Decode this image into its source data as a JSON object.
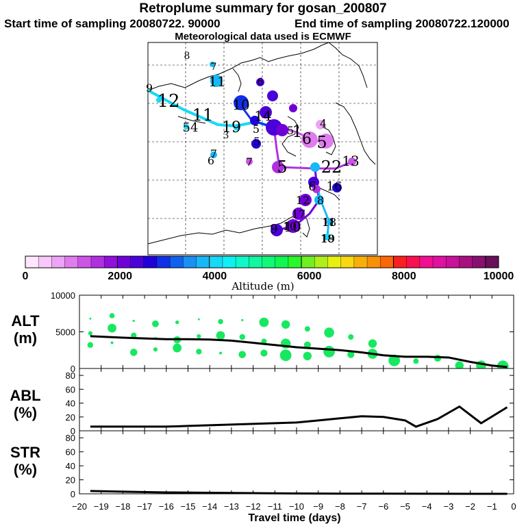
{
  "title": {
    "line1": "Retroplume summary for gosan_200807",
    "start_label": "Start time of sampling 20080722. 90000",
    "end_label": "End time of sampling 20080722.120000",
    "met_label": "Meteorological data used is ECMWF"
  },
  "colorbar": {
    "title": "Altitude (m)",
    "ticks": [
      "0",
      "2000",
      "4000",
      "6000",
      "8000",
      "10000"
    ],
    "colors": [
      "#ffe6ff",
      "#f7c8fa",
      "#eda4f5",
      "#e07cee",
      "#cc55e8",
      "#b030e0",
      "#9010dc",
      "#7000d8",
      "#4a00d8",
      "#2000d8",
      "#1030e8",
      "#1060f0",
      "#1890f4",
      "#18b8f8",
      "#18d8f8",
      "#10f0f0",
      "#10f8c8",
      "#10f8a0",
      "#10f878",
      "#10f850",
      "#28f828",
      "#70f020",
      "#b0f018",
      "#e8f010",
      "#f8d810",
      "#f8b008",
      "#f89008",
      "#f86808",
      "#f82020",
      "#f81050",
      "#f01090",
      "#e010a0",
      "#c81098",
      "#a81080",
      "#881070",
      "#681058"
    ]
  },
  "map": {
    "labels": [
      {
        "t": "8"
      },
      {
        "t": "7"
      },
      {
        "t": "11"
      },
      {
        "t": "6"
      },
      {
        "t": "9"
      },
      {
        "t": "12"
      },
      {
        "t": "10"
      },
      {
        "t": "7"
      },
      {
        "t": "5"
      },
      {
        "t": "14"
      },
      {
        "t": "11"
      },
      {
        "t": "54"
      },
      {
        "t": "19"
      },
      {
        "t": "3"
      },
      {
        "t": "5"
      },
      {
        "t": "6"
      },
      {
        "t": "4"
      },
      {
        "t": "5"
      },
      {
        "t": "1"
      },
      {
        "t": "6"
      },
      {
        "t": "5"
      },
      {
        "t": "7"
      },
      {
        "t": "6"
      },
      {
        "t": "5"
      },
      {
        "t": "22"
      },
      {
        "t": "13"
      },
      {
        "t": "10"
      },
      {
        "t": "16"
      },
      {
        "t": "12"
      },
      {
        "t": "8"
      },
      {
        "t": "17"
      },
      {
        "t": "9"
      },
      {
        "t": "10"
      },
      {
        "t": "11"
      },
      {
        "t": "18"
      },
      {
        "t": "19"
      }
    ]
  },
  "chart_data": [
    {
      "type": "scatter+line",
      "panel": "ALT",
      "ylabel": "ALT\n(m)",
      "ylim": [
        0,
        10000
      ],
      "yticks": [
        "0",
        "5000",
        "10000"
      ],
      "xlim": [
        -20,
        0
      ],
      "line": {
        "name": "mean altitude",
        "x": [
          -19.5,
          -18,
          -17,
          -16,
          -15,
          -14,
          -13,
          -12,
          -11,
          -10,
          -9,
          -8,
          -7,
          -6,
          -5,
          -4,
          -3,
          -2,
          -1,
          -0.3
        ],
        "values": [
          4400,
          4200,
          4100,
          4000,
          4000,
          3950,
          3800,
          3500,
          3200,
          2900,
          2700,
          2500,
          2200,
          1800,
          1600,
          1600,
          1500,
          900,
          400,
          200
        ]
      },
      "scatter": {
        "name": "plume clusters",
        "x": [
          -19.5,
          -19.5,
          -19.5,
          -18.5,
          -18.5,
          -18.5,
          -17.5,
          -17.5,
          -17.5,
          -16.5,
          -16.5,
          -16.5,
          -15.5,
          -15.5,
          -15.5,
          -14.5,
          -14.5,
          -14.5,
          -13.5,
          -13.5,
          -13.5,
          -12.5,
          -12.5,
          -12.5,
          -11.5,
          -11.5,
          -11.5,
          -10.5,
          -10.5,
          -10.5,
          -9.5,
          -9.5,
          -9.5,
          -8.5,
          -8.5,
          -7.5,
          -7.5,
          -6.5,
          -6.5,
          -5.5,
          -4.5,
          -3.5,
          -2.5,
          -1.5,
          -0.5
        ],
        "values": [
          6800,
          4800,
          3200,
          7200,
          5500,
          3500,
          6500,
          4500,
          2200,
          6100,
          4100,
          2600,
          6300,
          3900,
          2800,
          6700,
          4400,
          2300,
          6400,
          4500,
          2100,
          6600,
          4300,
          1900,
          6300,
          3700,
          2100,
          6000,
          3400,
          1800,
          5400,
          3200,
          1700,
          4900,
          2300,
          4300,
          1900,
          3400,
          2000,
          1100,
          1000,
          1400,
          400,
          400,
          300
        ]
      }
    },
    {
      "type": "line",
      "panel": "ABL",
      "ylabel": "ABL\n(%)",
      "ylim": [
        0,
        90
      ],
      "yticks": [
        "0",
        "20",
        "40",
        "60",
        "80"
      ],
      "xlim": [
        -20,
        0
      ],
      "x": [
        -19.5,
        -18,
        -17,
        -16,
        -15,
        -14,
        -13,
        -12,
        -11,
        -10,
        -9,
        -8,
        -7,
        -6,
        -5,
        -4.5,
        -3.5,
        -2.5,
        -1.5,
        -0.3
      ],
      "values": [
        6,
        6,
        6,
        6,
        7,
        8,
        9,
        10,
        11,
        12,
        15,
        18,
        21,
        20,
        15,
        6,
        17,
        35,
        11,
        34
      ]
    },
    {
      "type": "line",
      "panel": "STR",
      "ylabel": "STR\n(%)",
      "ylim": [
        0,
        90
      ],
      "yticks": [
        "0",
        "20",
        "40",
        "60",
        "80"
      ],
      "xlim": [
        -20,
        0
      ],
      "x": [
        -19.5,
        -18,
        -16,
        -14,
        -12,
        -10,
        -8,
        -6,
        -4,
        -2,
        -0.3
      ],
      "values": [
        4,
        3,
        2,
        1.5,
        1,
        0.5,
        0.3,
        0.2,
        0.1,
        0,
        0
      ]
    }
  ],
  "xaxis": {
    "label": "Travel time (days)",
    "ticks": [
      "−20",
      "−19",
      "−18",
      "−17",
      "−16",
      "−15",
      "−14",
      "−13",
      "−12",
      "−11",
      "−10",
      "−9",
      "−8",
      "−7",
      "−6",
      "−5",
      "−4",
      "−3",
      "−2",
      "−1",
      "0"
    ]
  }
}
